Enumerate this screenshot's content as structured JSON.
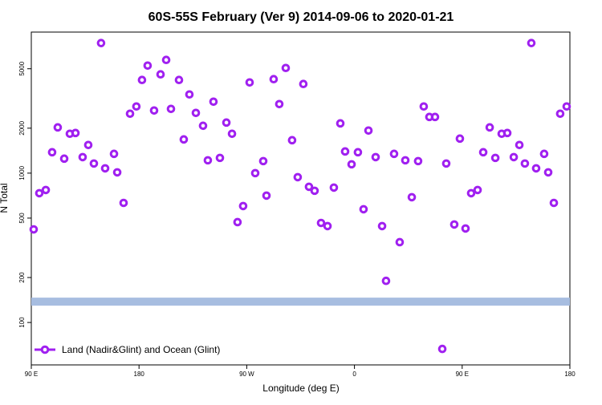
{
  "chart_data": {
    "type": "scatter",
    "title": "60S-55S February (Ver 9)   2014-09-06 to 2020-01-21",
    "x_label": "Longitude (deg E)",
    "y_label": "N Total",
    "ylog": true,
    "legend": "bottom-left",
    "xlim": [
      90,
      540
    ],
    "ylim": [
      52,
      8800
    ],
    "xticks": [
      {
        "value": 90,
        "label": "90 E"
      },
      180,
      {
        "value": 270,
        "label": "90 W"
      },
      {
        "value": 360,
        "label": "0"
      },
      {
        "value": 450,
        "label": "90 E"
      },
      {
        "value": 540,
        "label": "180"
      }
    ],
    "yticks": [
      100,
      200,
      500,
      1000,
      2000,
      5000
    ],
    "band": {
      "value": 138,
      "color": "#a7bde0"
    },
    "series": [
      {
        "name": "Land (Nadir&Glint) and Ocean (Glint)",
        "color": "#a020f0",
        "x": [
          92.0,
          96.7,
          102.1,
          107.4,
          112.1,
          117.5,
          122.2,
          126.9,
          132.9,
          137.6,
          142.3,
          148.3,
          151.7,
          159.1,
          161.8,
          167.1,
          172.5,
          177.8,
          182.5,
          187.2,
          192.6,
          198.0,
          202.7,
          206.7,
          213.4,
          217.4,
          222.1,
          227.5,
          233.5,
          237.5,
          242.2,
          247.6,
          253.0,
          257.7,
          262.3,
          267.0,
          272.4,
          277.1,
          283.8,
          286.5,
          292.5,
          297.2,
          302.6,
          307.9,
          312.6,
          317.3,
          322.0,
          326.7,
          332.1,
          337.5,
          342.8,
          348.2,
          352.2,
          357.6,
          362.9,
          367.6,
          371.7,
          377.7,
          383.1,
          386.4,
          393.1,
          397.8,
          402.5,
          407.9,
          413.2,
          417.9,
          422.6,
          427.3,
          436.7,
          433.4,
          443.4,
          448.1,
          452.8,
          457.5,
          462.9,
          467.6,
          473.0,
          477.7,
          483.0,
          487.7,
          493.1,
          497.8,
          502.4,
          507.8,
          511.8,
          518.5,
          521.9,
          526.6,
          531.9,
          537.3
        ],
        "values": [
          420,
          734,
          771,
          1380,
          2025,
          1250,
          1835,
          1857,
          1280,
          1543,
          1160,
          7430,
          1077,
          1346,
          1012,
          632,
          2500,
          2795,
          4205,
          5250,
          2627,
          4585,
          5730,
          2692,
          4205,
          1682,
          3365,
          2531,
          2076,
          1219,
          3010,
          1265,
          2181,
          1835,
          470,
          602,
          4050,
          1000,
          1204,
          707,
          4257,
          2899,
          5060,
          1661,
          940,
          3953,
          810,
          762,
          464,
          442,
          800,
          2154,
          1397,
          1146,
          1380,
          573,
          1928,
          1280,
          442,
          190,
          1346,
          345,
          1219,
          690,
          1204,
          2795,
          2378,
          2378,
          1160,
          66.5,
          453,
          1703,
          426,
          734,
          771,
          1380,
          2025,
          1265,
          1835,
          1857,
          1280,
          1543,
          1160,
          7430,
          1077,
          1346,
          1012,
          632,
          2500,
          2795
        ]
      }
    ]
  }
}
